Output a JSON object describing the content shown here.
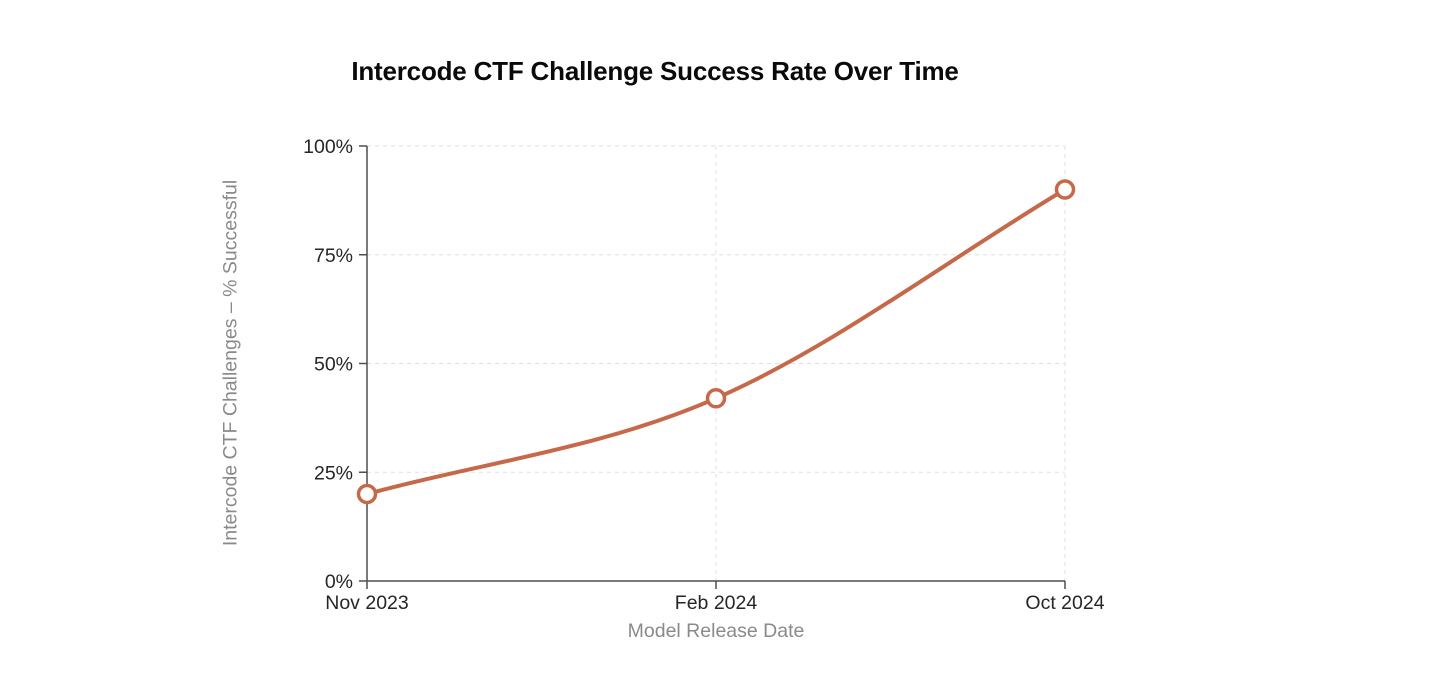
{
  "chart_data": {
    "type": "line",
    "title": "Intercode CTF Challenge Success Rate Over Time",
    "xlabel": "Model Release Date",
    "ylabel": "Intercode CTF Challenges – % Successful",
    "categories": [
      "Nov 2023",
      "Feb 2024",
      "Oct 2024"
    ],
    "values": [
      20,
      42,
      90
    ],
    "ylim": [
      0,
      100
    ],
    "y_ticks": [
      {
        "value": 0,
        "label": "0%"
      },
      {
        "value": 25,
        "label": "25%"
      },
      {
        "value": 50,
        "label": "50%"
      },
      {
        "value": 75,
        "label": "75%"
      },
      {
        "value": 100,
        "label": "100%"
      }
    ],
    "line_shape": "spline",
    "grid": "dashed",
    "legend_position": "none",
    "colors": {
      "line": "#c5694a",
      "marker_fill": "#ffffff",
      "marker_stroke": "#c5694a",
      "axis": "#4f4f4f",
      "tick_label": "#262626",
      "axis_title": "#8a8a8a",
      "grid": "#dfdfdf",
      "title": "#0a0a0a",
      "background": "#ffffff"
    }
  }
}
